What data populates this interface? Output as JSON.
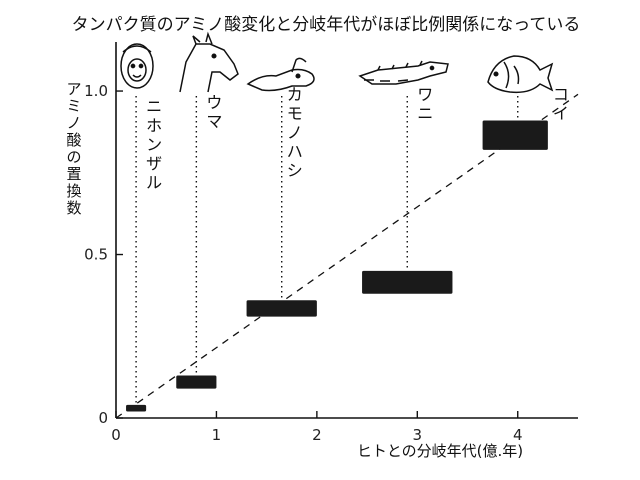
{
  "chart_data": {
    "type": "scatter",
    "title": "タンパク質のアミノ酸変化と分岐年代がほぼ比例関係になっている",
    "xlabel": "ヒトとの分岐年代(億.年)",
    "ylabel": "アミノ酸の置換数",
    "xlim": [
      0,
      4.6
    ],
    "ylim": [
      0,
      1.15
    ],
    "x_ticks": [
      "0",
      "1",
      "2",
      "3",
      "4"
    ],
    "y_ticks": [
      "0",
      "0.5",
      "1.0"
    ],
    "trend_line": {
      "style": "dashed",
      "from": [
        0.0,
        0.0
      ],
      "to": [
        4.6,
        0.99
      ]
    },
    "points": [
      {
        "name": "ニホンザル",
        "x": 0.2,
        "x_range": [
          0.1,
          0.3
        ],
        "y": 0.03,
        "y_range": [
          0.02,
          0.04
        ],
        "label_x": 0.3
      },
      {
        "name": "ウマ",
        "x": 0.8,
        "x_range": [
          0.6,
          1.0
        ],
        "y": 0.11,
        "y_range": [
          0.09,
          0.13
        ],
        "label_x": 0.9
      },
      {
        "name": "カモノハシ",
        "x": 1.65,
        "x_range": [
          1.3,
          2.0
        ],
        "y": 0.34,
        "y_range": [
          0.31,
          0.36
        ],
        "label_x": 1.7
      },
      {
        "name": "ワニ",
        "x": 2.9,
        "x_range": [
          2.45,
          3.35
        ],
        "y": 0.41,
        "y_range": [
          0.38,
          0.45
        ],
        "label_x": 3.0
      },
      {
        "name": "コイ",
        "x": 4.0,
        "x_range": [
          3.65,
          4.3
        ],
        "y": 0.86,
        "y_range": [
          0.82,
          0.91
        ],
        "label_x": 4.35
      }
    ],
    "grid": false,
    "legend": "none"
  },
  "colors": {
    "ink": "#111111",
    "bar": "#1a1a1a",
    "background": "#ffffff"
  }
}
